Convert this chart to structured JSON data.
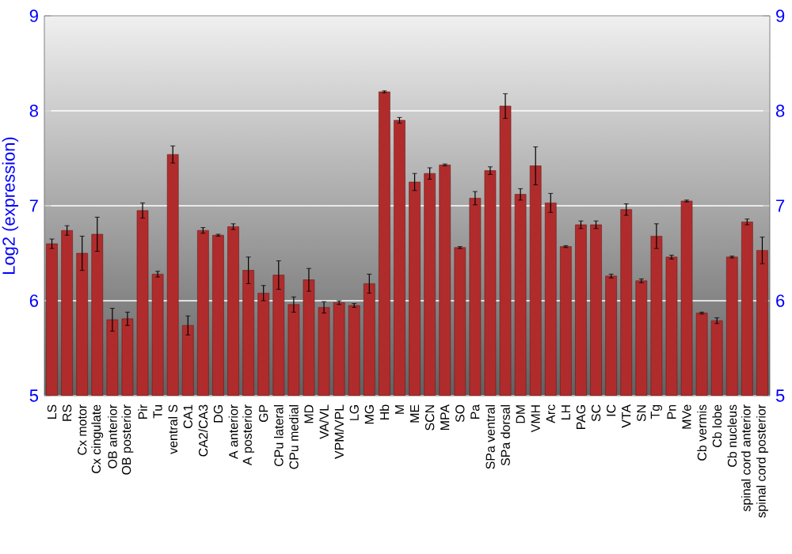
{
  "chart_data": {
    "type": "bar",
    "ylabel": "Log2 (expression)",
    "categories": [
      "LS",
      "RS",
      "Cx motor",
      "Cx cingulate",
      "OB anterior",
      "OB posterior",
      "Pir",
      "Tu",
      "ventral S",
      "CA1",
      "CA2/CA3",
      "DG",
      "A anterior",
      "A posterior",
      "GP",
      "CPu lateral",
      "CPu medial",
      "MD",
      "VA/VL",
      "VPM/VPL",
      "LG",
      "MG",
      "Hb",
      "M",
      "ME",
      "SCN",
      "MPA",
      "SO",
      "Pa",
      "SPa ventral",
      "SPa dorsal",
      "DM",
      "VMH",
      "Arc",
      "LH",
      "PAG",
      "SC",
      "IC",
      "VTA",
      "SN",
      "Tg",
      "Pn",
      "MVe",
      "Cb vermis",
      "Cb lobe",
      "Cb nucleus",
      "spinal cord anterior",
      "spinal cord posterior"
    ],
    "values": [
      6.6,
      6.74,
      6.5,
      6.7,
      5.8,
      5.81,
      6.95,
      6.28,
      7.54,
      5.74,
      6.74,
      6.69,
      6.78,
      6.32,
      6.08,
      6.27,
      5.96,
      6.22,
      5.93,
      5.98,
      5.95,
      6.18,
      8.2,
      7.9,
      7.25,
      7.34,
      7.43,
      6.56,
      7.08,
      7.37,
      8.05,
      7.12,
      7.42,
      7.03,
      6.57,
      6.8,
      6.8,
      6.26,
      6.96,
      6.21,
      6.68,
      6.46,
      7.05,
      5.87,
      5.79,
      6.46,
      6.83,
      6.53
    ],
    "errors": [
      0.05,
      0.05,
      0.18,
      0.18,
      0.12,
      0.07,
      0.08,
      0.03,
      0.09,
      0.1,
      0.03,
      0.01,
      0.03,
      0.14,
      0.08,
      0.15,
      0.08,
      0.12,
      0.06,
      0.02,
      0.02,
      0.1,
      0.01,
      0.03,
      0.09,
      0.06,
      0.01,
      0.01,
      0.07,
      0.04,
      0.13,
      0.06,
      0.2,
      0.1,
      0.01,
      0.04,
      0.04,
      0.02,
      0.06,
      0.02,
      0.13,
      0.02,
      0.01,
      0.01,
      0.03,
      0.01,
      0.03,
      0.14
    ],
    "color": "#b02c2c",
    "ylim": [
      5,
      9
    ],
    "yticks": [
      5,
      6,
      7,
      8,
      9
    ],
    "y2lim": [
      5,
      9
    ],
    "y2ticks": [
      5,
      6,
      7,
      8,
      9
    ],
    "grid": "y"
  }
}
